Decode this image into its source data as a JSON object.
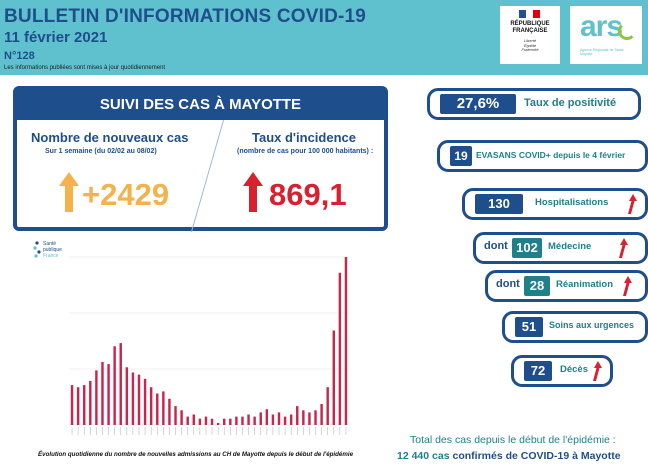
{
  "header": {
    "title": "BULLETIN D'INFORMATIONS COVID-19",
    "date": "11 février 2021",
    "number": "N°128",
    "note": "Les informations publiées sont mises à jour quotidiennement"
  },
  "logos": {
    "republique": {
      "name_line1": "RÉPUBLIQUE",
      "name_line2": "FRANÇAISE",
      "motto_line1": "Liberté",
      "motto_line2": "Égalité",
      "motto_line3": "Fraternité"
    },
    "ars": {
      "mark": "ars",
      "subtitle": "Agence Régionale de Santé Mayotte"
    }
  },
  "suivi": {
    "heading": "SUIVI DES CAS À MAYOTTE",
    "new_cases": {
      "title": "Nombre de nouveaux cas",
      "subtitle": "Sur 1 semaine (du 02/02 au 08/02)",
      "value": "+2429",
      "color": "#f3b34a"
    },
    "incidence": {
      "title": "Taux d'incidence",
      "subtitle": "(nombre de cas pour 100 000 habitants) :",
      "value": "869,1",
      "color": "#d8202f"
    }
  },
  "chart": {
    "logo_line1": "Santé",
    "logo_line2": "publique",
    "logo_line3": "France",
    "caption": "Évolution quotidienne du nombre de nouvelles admissions au CH de Mayotte depuis le début de l'épidémie",
    "bar_color": "#c8264d"
  },
  "chart_data": {
    "type": "bar",
    "values": [
      38,
      36,
      38,
      42,
      52,
      60,
      58,
      75,
      78,
      55,
      50,
      48,
      44,
      36,
      30,
      32,
      25,
      18,
      14,
      8,
      10,
      6,
      8,
      6,
      2,
      6,
      6,
      8,
      8,
      10,
      8,
      12,
      15,
      10,
      12,
      8,
      10,
      18,
      14,
      12,
      14,
      20,
      36,
      90,
      145,
      160
    ],
    "title": "",
    "xlabel": "",
    "ylabel": ""
  },
  "indicators": {
    "positivity": {
      "value": "27,6%",
      "label": "Taux de positivité"
    },
    "evasans": {
      "value": "19",
      "label": "EVASANS COVID+ depuis le 4 février"
    },
    "hospitalisations": {
      "value": "130",
      "label": "Hospitalisations"
    },
    "medecine": {
      "prefix": "dont",
      "value": "102",
      "label": "Médecine"
    },
    "reanimation": {
      "prefix": "dont",
      "value": "28",
      "label": "Réanimation"
    },
    "urgences": {
      "value": "51",
      "label": "Soins aux urgences"
    },
    "deces": {
      "value": "72",
      "label": "Décès"
    },
    "arrow_color": "#d8202f"
  },
  "total": {
    "line1": "Total des cas depuis le début de l'épidémie :",
    "value": "12 440 cas",
    "line2_rest": "confirmés de COVID-19 à Mayotte"
  }
}
